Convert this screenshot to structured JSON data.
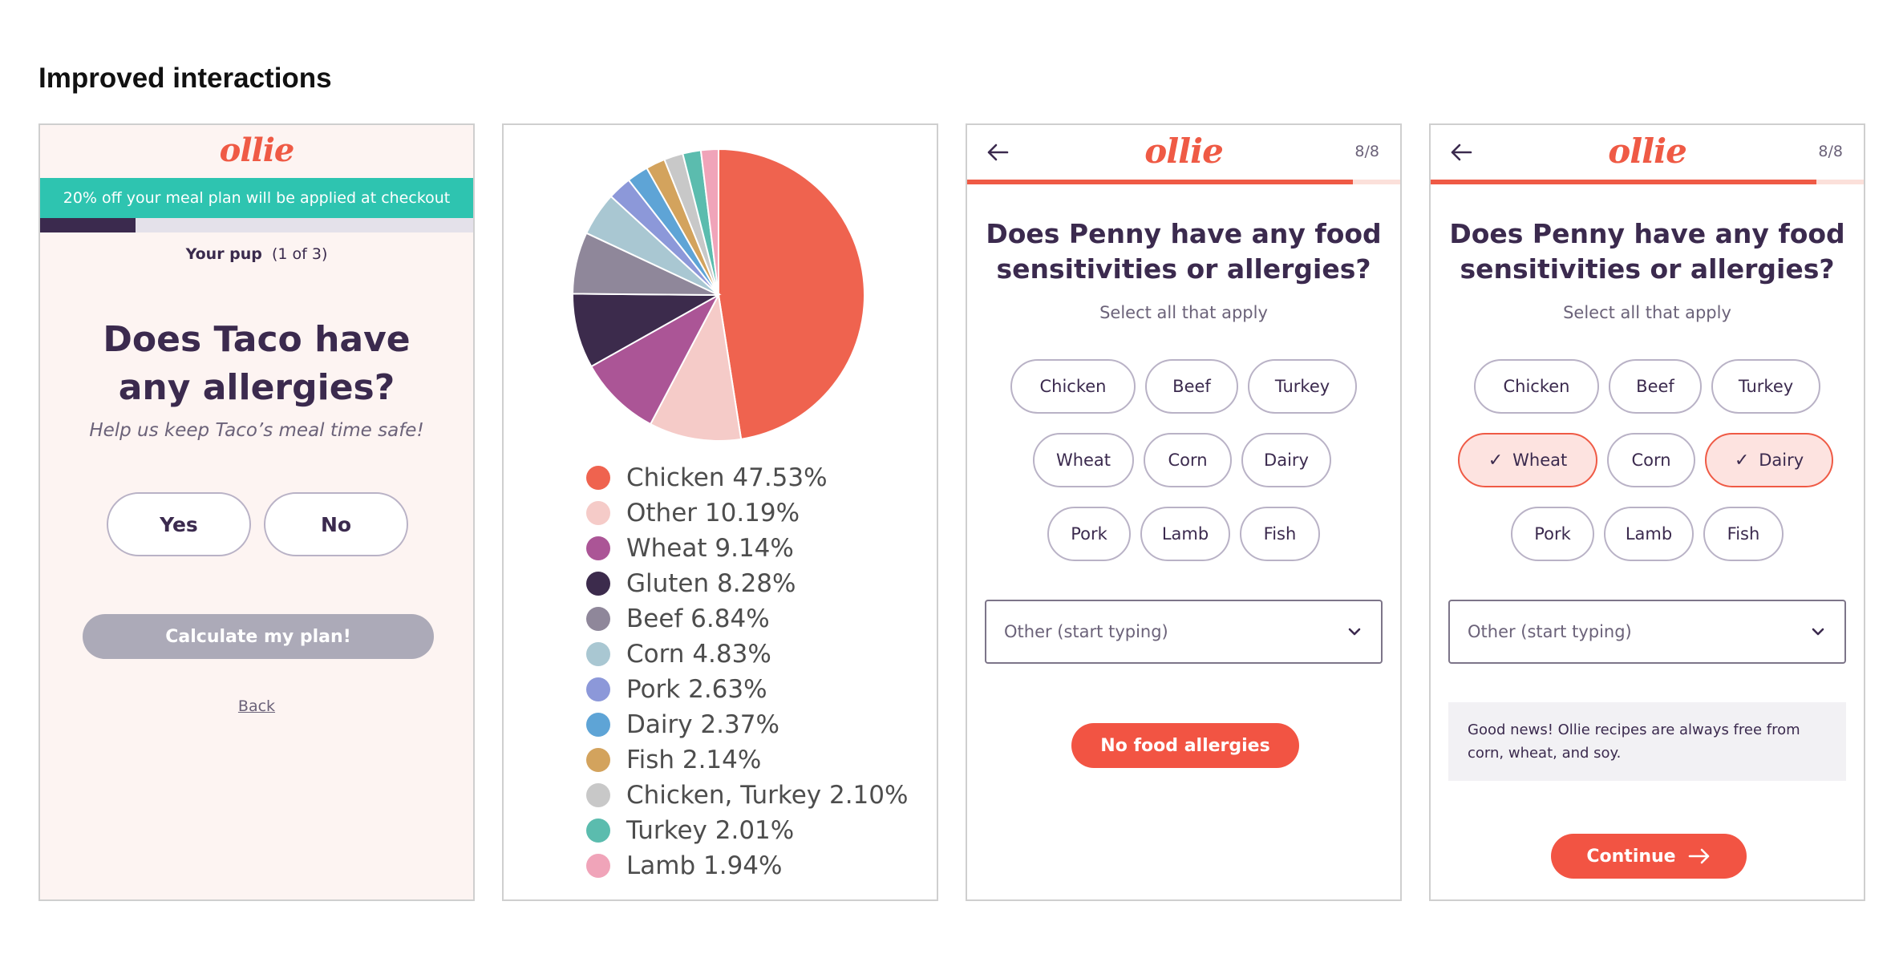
{
  "heading": "Improved interactions",
  "panel1": {
    "logo": "ollie",
    "promo": "20% off your meal plan will be applied at checkout",
    "progress": 0.22,
    "step_bold": "Your pup",
    "step_rest": "(1 of 3)",
    "question_line1": "Does Taco have",
    "question_line2": "any allergies?",
    "subtitle": "Help us keep Taco’s meal time safe!",
    "yes_label": "Yes",
    "no_label": "No",
    "calc_label": "Calculate my plan!",
    "back_label": "Back"
  },
  "chart_data": {
    "type": "pie",
    "title": "",
    "legend_placement": "bottom",
    "slices": [
      {
        "label": "Chicken 47.53%",
        "name": "Chicken",
        "value": 47.53,
        "color": "#ef634f"
      },
      {
        "label": "Other 10.19%",
        "name": "Other",
        "value": 10.19,
        "color": "#f5cbc8"
      },
      {
        "label": "Wheat 9.14%",
        "name": "Wheat",
        "value": 9.14,
        "color": "#ab5596"
      },
      {
        "label": "Gluten 8.28%",
        "name": "Gluten",
        "value": 8.28,
        "color": "#3c2b4c"
      },
      {
        "label": "Beef 6.84%",
        "name": "Beef",
        "value": 6.84,
        "color": "#8f879a"
      },
      {
        "label": "Corn 4.83%",
        "name": "Corn",
        "value": 4.83,
        "color": "#a9c7d2"
      },
      {
        "label": "Pork 2.63%",
        "name": "Pork",
        "value": 2.63,
        "color": "#8c98d9"
      },
      {
        "label": "Dairy 2.37%",
        "name": "Dairy",
        "value": 2.37,
        "color": "#5ea4d6"
      },
      {
        "label": "Fish 2.14%",
        "name": "Fish",
        "value": 2.14,
        "color": "#d3a35d"
      },
      {
        "label": "Chicken, Turkey 2.10%",
        "name": "Chicken, Turkey",
        "value": 2.1,
        "color": "#c8c8c8"
      },
      {
        "label": "Turkey 2.01%",
        "name": "Turkey",
        "value": 2.01,
        "color": "#5bbcae"
      },
      {
        "label": "Lamb 1.94%",
        "name": "Lamb",
        "value": 1.94,
        "color": "#f0a4b9"
      }
    ]
  },
  "panel3": {
    "logo": "ollie",
    "step": "8/8",
    "progress": 0.89,
    "question_line1": "Does Penny have any food",
    "question_line2": "sensitivities or allergies?",
    "subtitle": "Select all that apply",
    "chips": [
      "Chicken",
      "Beef",
      "Turkey",
      "Wheat",
      "Corn",
      "Dairy",
      "Pork",
      "Lamb",
      "Fish"
    ],
    "dropdown_placeholder": "Other (start typing)",
    "cta_label": "No food allergies"
  },
  "panel4": {
    "logo": "ollie",
    "step": "8/8",
    "progress": 0.89,
    "question_line1": "Does Penny have any food",
    "question_line2": "sensitivities or allergies?",
    "subtitle": "Select all that apply",
    "chips": [
      "Chicken",
      "Beef",
      "Turkey",
      "Wheat",
      "Corn",
      "Dairy",
      "Pork",
      "Lamb",
      "Fish"
    ],
    "selected_chips": [
      "Wheat",
      "Dairy"
    ],
    "dropdown_placeholder": "Other (start typing)",
    "info_line1": "Good news! Ollie recipes are always free from",
    "info_line2": "corn, wheat, and soy.",
    "cta_label": "Continue"
  },
  "colors": {
    "brand": "#ef5a45",
    "teal": "#2ec4b0",
    "ink": "#3b2a4e"
  }
}
